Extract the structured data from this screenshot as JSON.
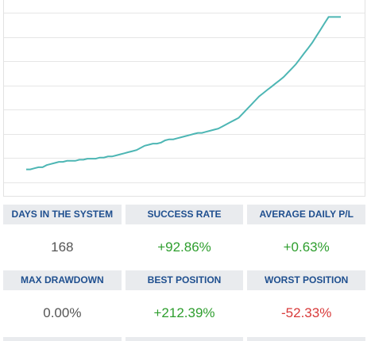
{
  "chart_data": {
    "type": "line",
    "ylim": [
      0,
      7.5
    ],
    "xlim": [
      0,
      168
    ],
    "grid": true,
    "series": [
      {
        "color": "#4db6b4",
        "values": [
          0.2,
          0.2,
          0.25,
          0.3,
          0.3,
          0.4,
          0.45,
          0.5,
          0.55,
          0.55,
          0.6,
          0.6,
          0.6,
          0.65,
          0.65,
          0.7,
          0.7,
          0.7,
          0.75,
          0.75,
          0.8,
          0.8,
          0.85,
          0.9,
          0.95,
          1.0,
          1.05,
          1.1,
          1.2,
          1.3,
          1.35,
          1.4,
          1.4,
          1.45,
          1.55,
          1.6,
          1.6,
          1.65,
          1.7,
          1.75,
          1.8,
          1.85,
          1.9,
          1.9,
          1.95,
          2.0,
          2.05,
          2.1,
          2.2,
          2.3,
          2.4,
          2.5,
          2.6,
          2.8,
          3.0,
          3.2,
          3.4,
          3.6,
          3.75,
          3.9,
          4.05,
          4.2,
          4.35,
          4.5,
          4.7,
          4.9,
          5.1,
          5.35,
          5.6,
          5.85,
          6.1,
          6.4,
          6.7,
          7.0,
          7.3,
          7.3,
          7.3,
          7.3
        ]
      }
    ]
  },
  "stats": [
    {
      "label": "DAYS IN THE SYSTEM",
      "value": "168",
      "tone": "neutral"
    },
    {
      "label": "SUCCESS RATE",
      "value": "+92.86%",
      "tone": "pos"
    },
    {
      "label": "AVERAGE DAILY P/L",
      "value": "+0.63%",
      "tone": "pos"
    },
    {
      "label": "MAX DRAWDOWN",
      "value": "0.00%",
      "tone": "neutral"
    },
    {
      "label": "BEST POSITION",
      "value": "+212.39%",
      "tone": "pos"
    },
    {
      "label": "WORST POSITION",
      "value": "-52.33%",
      "tone": "neg"
    }
  ]
}
